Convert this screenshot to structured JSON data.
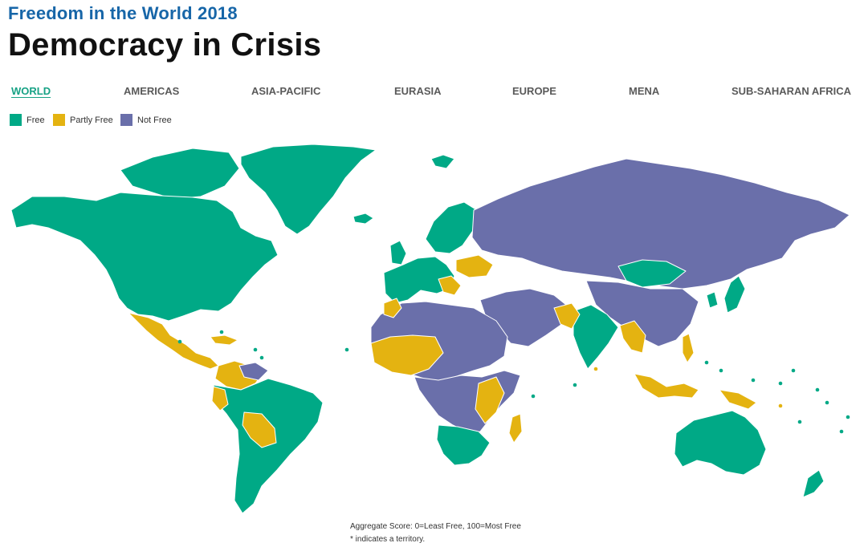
{
  "header": {
    "kicker": "Freedom in the World 2018",
    "title": "Democracy in Crisis"
  },
  "tabs": [
    {
      "label": "WORLD",
      "active": true
    },
    {
      "label": "AMERICAS",
      "active": false
    },
    {
      "label": "ASIA-PACIFIC",
      "active": false
    },
    {
      "label": "EURASIA",
      "active": false
    },
    {
      "label": "EUROPE",
      "active": false
    },
    {
      "label": "MENA",
      "active": false
    },
    {
      "label": "SUB-SAHARAN AFRICA",
      "active": false
    }
  ],
  "legend": [
    {
      "label": "Free",
      "color": "#00a986"
    },
    {
      "label": "Partly Free",
      "color": "#e4b311"
    },
    {
      "label": "Not Free",
      "color": "#6a6faa"
    }
  ],
  "footnotes": {
    "score": "Aggregate Score: 0=Least Free, 100=Most Free",
    "territory": "* indicates a territory."
  },
  "colors": {
    "free": "#00a986",
    "partly_free": "#e4b311",
    "not_free": "#6a6faa",
    "kicker": "#1766a8",
    "active_tab": "#17a285"
  }
}
